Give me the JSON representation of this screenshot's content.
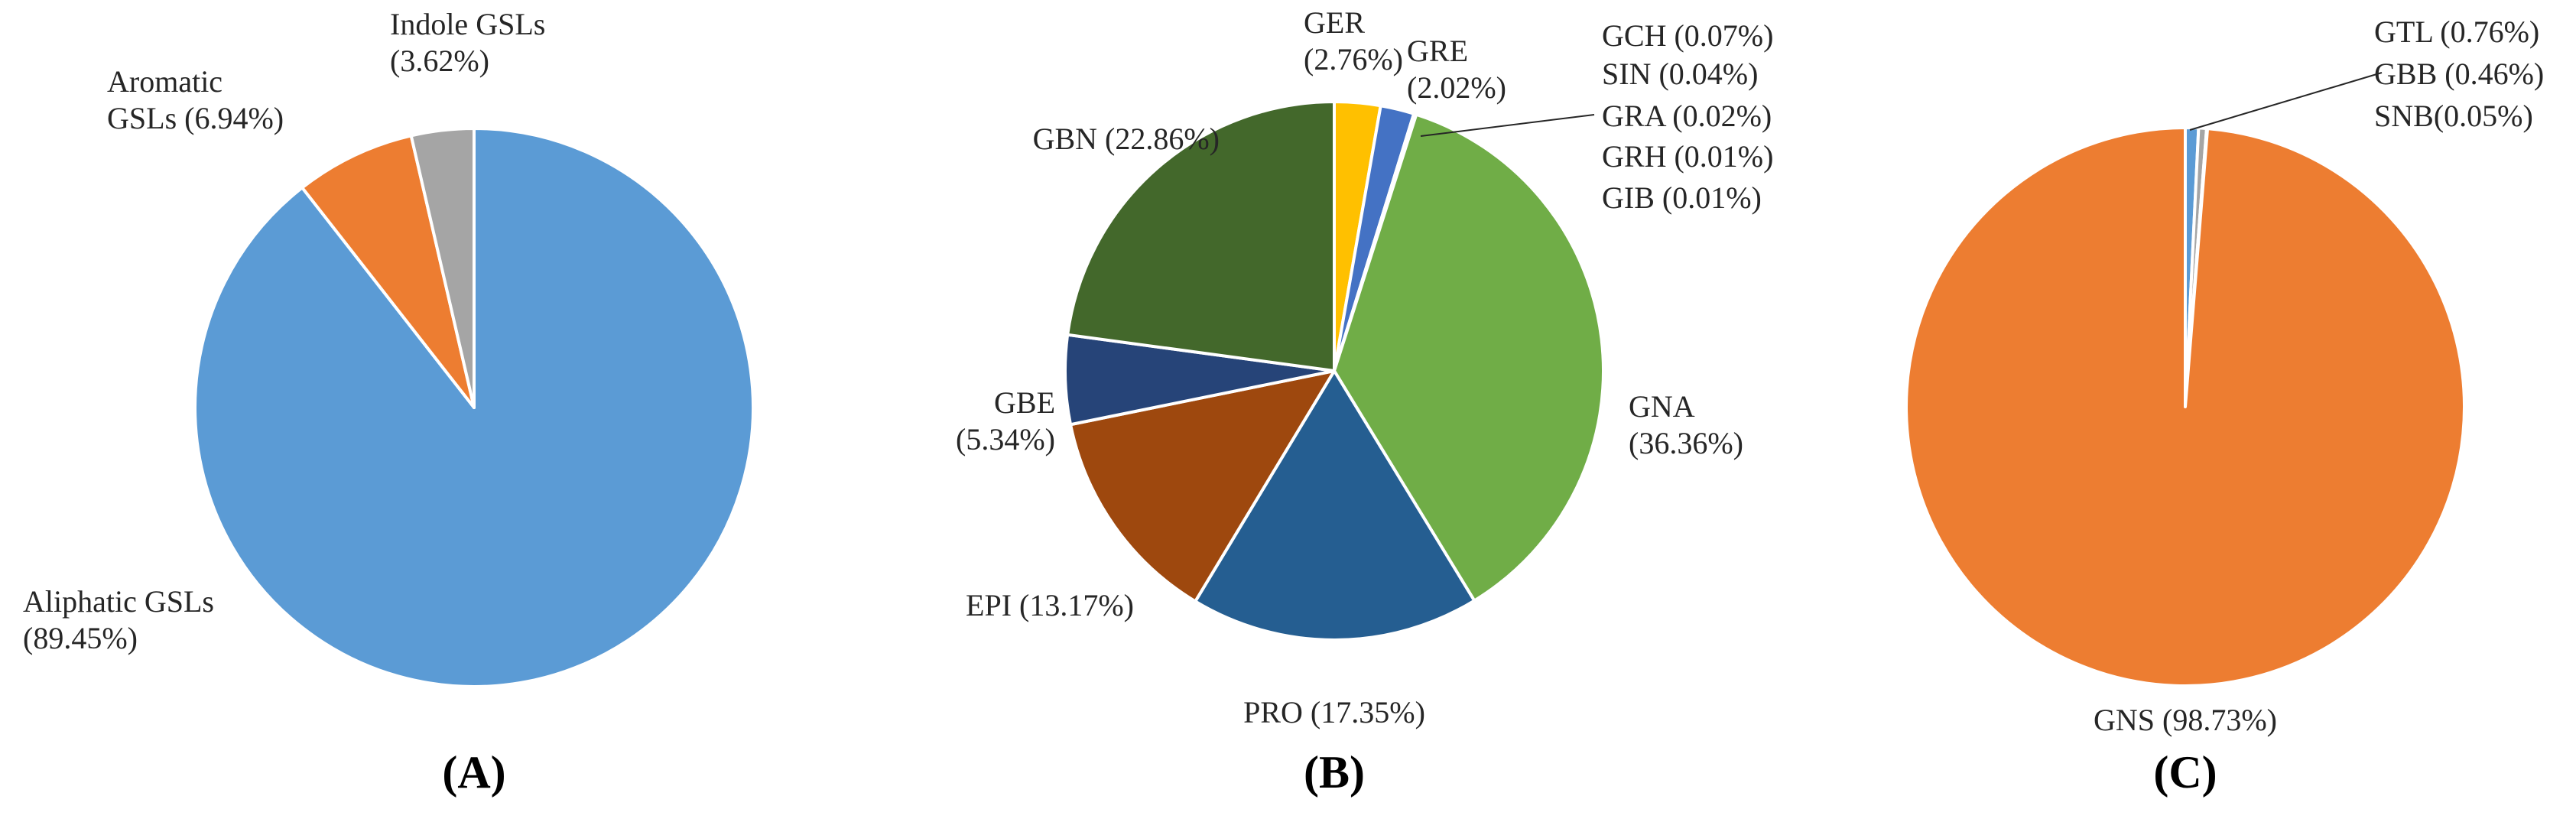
{
  "chart_data": [
    {
      "type": "pie",
      "panel_label": "(A)",
      "slices": [
        {
          "name": "Aliphatic GSLs",
          "value": 89.45,
          "line1": "Aliphatic GSLs",
          "line2": "(89.45%)",
          "color": "#5b9bd5"
        },
        {
          "name": "Aromatic GSLs",
          "value": 6.94,
          "line1": "Aromatic",
          "line2": "GSLs (6.94%)",
          "color": "#ed7d31"
        },
        {
          "name": "Indole GSLs",
          "value": 3.62,
          "line1": "Indole GSLs",
          "line2": "(3.62%)",
          "color": "#a5a5a5"
        }
      ]
    },
    {
      "type": "pie",
      "panel_label": "(B)",
      "slices": [
        {
          "name": "GER",
          "value": 2.76,
          "line1": "GER",
          "line2": "(2.76%)",
          "color": "#ffc000"
        },
        {
          "name": "GRE",
          "value": 2.02,
          "line1": "GRE",
          "line2": "(2.02%)",
          "color": "#4472c4"
        },
        {
          "name": "GCH",
          "value": 0.07,
          "line1": "GCH (0.07%)",
          "color": "#70ad47"
        },
        {
          "name": "SIN",
          "value": 0.04,
          "line1": "SIN (0.04%)",
          "color": "#264478"
        },
        {
          "name": "GRA",
          "value": 0.02,
          "line1": "GRA (0.02%)",
          "color": "#9e480e"
        },
        {
          "name": "GRH",
          "value": 0.01,
          "line1": "GRH (0.01%)",
          "color": "#636363"
        },
        {
          "name": "GIB",
          "value": 0.01,
          "line1": "GIB (0.01%)",
          "color": "#997300"
        },
        {
          "name": "GNA",
          "value": 36.36,
          "line1": "GNA",
          "line2": "(36.36%)",
          "color": "#70ad47"
        },
        {
          "name": "PRO",
          "value": 17.35,
          "line1": "PRO (17.35%)",
          "color": "#255e91"
        },
        {
          "name": "EPI",
          "value": 13.17,
          "line1": "EPI (13.17%)",
          "color": "#9e480e"
        },
        {
          "name": "GBE",
          "value": 5.34,
          "line1": "GBE",
          "line2": "(5.34%)",
          "color": "#264478"
        },
        {
          "name": "GBN",
          "value": 22.86,
          "line1": "GBN (22.86%)",
          "color": "#43682b"
        }
      ]
    },
    {
      "type": "pie",
      "panel_label": "(C)",
      "slices": [
        {
          "name": "GTL",
          "value": 0.76,
          "line1": "GTL (0.76%)",
          "color": "#5b9bd5"
        },
        {
          "name": "GBB",
          "value": 0.46,
          "line1": "GBB (0.46%)",
          "color": "#a5a5a5"
        },
        {
          "name": "SNB",
          "value": 0.05,
          "line1": "SNB(0.05%)",
          "color": "#ffc000"
        },
        {
          "name": "GNS",
          "value": 98.73,
          "line1": "GNS (98.73%)",
          "color": "#ed7d31"
        }
      ]
    }
  ]
}
